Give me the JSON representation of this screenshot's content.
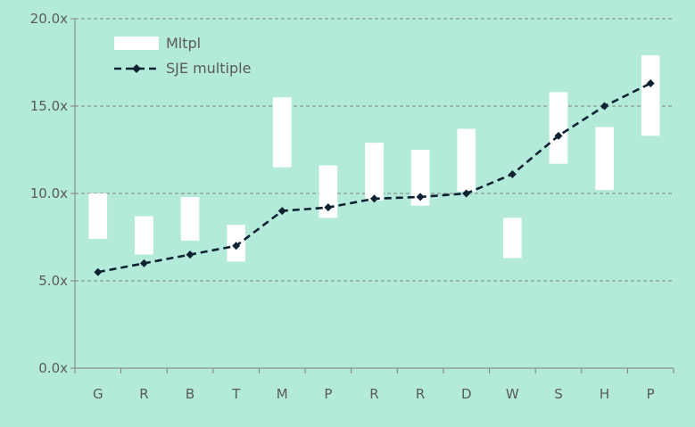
{
  "chart_data": {
    "type": "bar",
    "categories": [
      "G",
      "R",
      "B",
      "T",
      "M",
      "P",
      "R",
      "R",
      "D",
      "W",
      "S",
      "H",
      "P"
    ],
    "series": [
      {
        "name": "Mltpl",
        "kind": "floating-range",
        "color": "#ffffff",
        "low": [
          7.4,
          6.5,
          7.3,
          6.1,
          11.5,
          8.6,
          9.6,
          9.3,
          10.1,
          6.3,
          11.7,
          10.2,
          13.3
        ],
        "high": [
          10.0,
          8.7,
          9.8,
          8.2,
          15.5,
          11.6,
          12.9,
          12.5,
          13.7,
          8.6,
          15.8,
          13.8,
          17.9
        ]
      },
      {
        "name": "SJE multiple",
        "kind": "line",
        "style": "dashed",
        "marker": "diamond",
        "color": "#0d2233",
        "values": [
          5.5,
          6.0,
          6.5,
          7.0,
          9.0,
          9.2,
          9.7,
          9.8,
          10.0,
          11.1,
          13.3,
          15.0,
          16.3
        ]
      }
    ],
    "ylim": [
      0,
      20
    ],
    "yticks": [
      0,
      5,
      10,
      15,
      20
    ],
    "ytick_labels": [
      "0.0x",
      "5.0x",
      "10.0x",
      "15.0x",
      "20.0x"
    ],
    "grid": "horizontal-dashed",
    "legend_position": "top-left",
    "title": "",
    "xlabel": "",
    "ylabel": ""
  },
  "colors": {
    "background": "#b3ead9",
    "axis": "#7f7f7f",
    "grid": "#808080",
    "text": "#5a5a5a"
  }
}
